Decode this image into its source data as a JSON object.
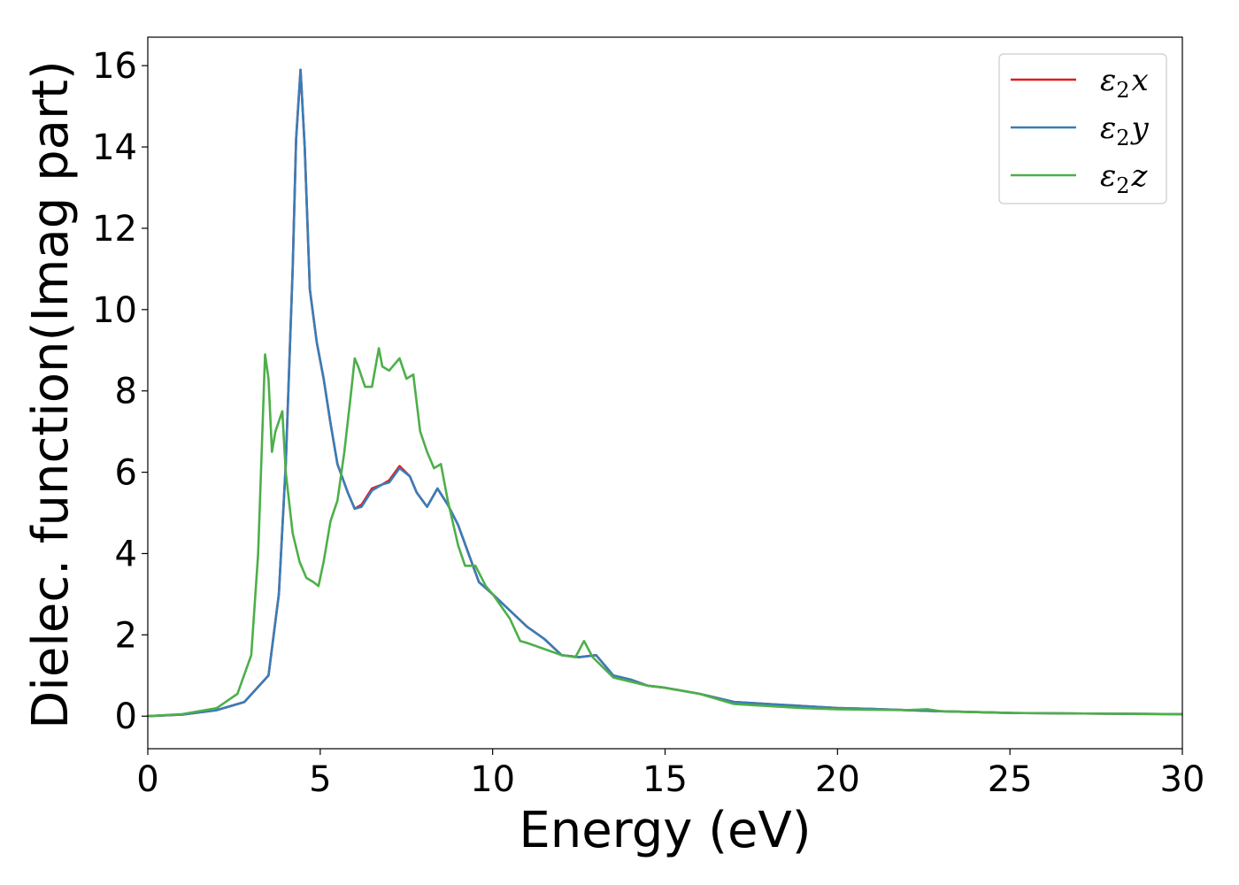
{
  "chart_data": {
    "type": "line",
    "title": "",
    "xlabel": "Energy (eV)",
    "ylabel": "Dielec. function(Imag part)",
    "xlim": [
      0,
      30
    ],
    "ylim": [
      -0.8,
      16.7
    ],
    "xticks": [
      0,
      5,
      10,
      15,
      20,
      25,
      30
    ],
    "yticks": [
      0,
      2,
      4,
      6,
      8,
      10,
      12,
      14,
      16
    ],
    "grid": false,
    "legend_position": "top-right",
    "series": [
      {
        "name": "ε₂x",
        "legend_base": "ε",
        "legend_sub": "2",
        "legend_var": "x",
        "color": "#e41a1c",
        "x": [
          0,
          1,
          2,
          2.8,
          3.5,
          3.8,
          4.0,
          4.2,
          4.3,
          4.43,
          4.55,
          4.7,
          4.9,
          5.1,
          5.3,
          5.5,
          5.8,
          6.0,
          6.2,
          6.5,
          6.8,
          7.0,
          7.3,
          7.6,
          7.8,
          8.1,
          8.4,
          8.7,
          9.0,
          9.3,
          9.6,
          10.0,
          10.5,
          11.0,
          11.5,
          12.0,
          12.5,
          13.0,
          13.5,
          14.0,
          14.5,
          15.0,
          16.0,
          17.0,
          18.0,
          19.0,
          20.0,
          21.0,
          22.0,
          23.0,
          25.0,
          28.0,
          30.0
        ],
        "y": [
          0,
          0.04,
          0.15,
          0.35,
          1.0,
          3.0,
          6.2,
          11.0,
          14.2,
          15.9,
          14.0,
          10.5,
          9.2,
          8.3,
          7.2,
          6.2,
          5.5,
          5.1,
          5.2,
          5.6,
          5.7,
          5.8,
          6.15,
          5.9,
          5.5,
          5.15,
          5.6,
          5.2,
          4.7,
          4.0,
          3.3,
          3.0,
          2.6,
          2.2,
          1.9,
          1.5,
          1.45,
          1.5,
          1.0,
          0.9,
          0.75,
          0.7,
          0.55,
          0.35,
          0.3,
          0.25,
          0.2,
          0.18,
          0.15,
          0.12,
          0.08,
          0.06,
          0.05
        ]
      },
      {
        "name": "ε₂y",
        "legend_base": "ε",
        "legend_sub": "2",
        "legend_var": "y",
        "color": "#377eb8",
        "x": [
          0,
          1,
          2,
          2.8,
          3.5,
          3.8,
          4.0,
          4.2,
          4.3,
          4.43,
          4.55,
          4.7,
          4.9,
          5.1,
          5.3,
          5.5,
          5.8,
          6.0,
          6.2,
          6.5,
          6.8,
          7.0,
          7.3,
          7.6,
          7.8,
          8.1,
          8.4,
          8.7,
          9.0,
          9.3,
          9.6,
          10.0,
          10.5,
          11.0,
          11.5,
          12.0,
          12.5,
          13.0,
          13.5,
          14.0,
          14.5,
          15.0,
          16.0,
          17.0,
          18.0,
          19.0,
          20.0,
          21.0,
          22.0,
          23.0,
          25.0,
          28.0,
          30.0
        ],
        "y": [
          0,
          0.04,
          0.15,
          0.35,
          1.0,
          3.0,
          6.2,
          11.0,
          14.2,
          15.9,
          14.0,
          10.5,
          9.2,
          8.3,
          7.2,
          6.2,
          5.5,
          5.1,
          5.15,
          5.55,
          5.7,
          5.75,
          6.1,
          5.9,
          5.5,
          5.15,
          5.6,
          5.2,
          4.7,
          4.0,
          3.3,
          3.0,
          2.6,
          2.2,
          1.9,
          1.5,
          1.45,
          1.5,
          1.0,
          0.9,
          0.75,
          0.7,
          0.55,
          0.35,
          0.3,
          0.25,
          0.2,
          0.18,
          0.15,
          0.12,
          0.08,
          0.06,
          0.05
        ]
      },
      {
        "name": "ε₂z",
        "legend_base": "ε",
        "legend_sub": "2",
        "legend_var": "z",
        "color": "#4daf4a",
        "x": [
          0,
          1,
          2,
          2.6,
          3.0,
          3.2,
          3.4,
          3.5,
          3.6,
          3.7,
          3.9,
          4.0,
          4.2,
          4.4,
          4.6,
          4.8,
          4.95,
          5.1,
          5.3,
          5.5,
          5.7,
          5.9,
          6.0,
          6.1,
          6.3,
          6.5,
          6.7,
          6.8,
          7.0,
          7.3,
          7.5,
          7.7,
          7.9,
          8.1,
          8.3,
          8.5,
          8.7,
          9.0,
          9.2,
          9.5,
          9.8,
          10.0,
          10.5,
          10.8,
          11.0,
          11.5,
          12.0,
          12.4,
          12.65,
          12.9,
          13.5,
          14.0,
          14.5,
          15.0,
          16.0,
          17.0,
          18.0,
          19.0,
          20.0,
          21.0,
          22.0,
          22.6,
          23.0,
          25.0,
          28.0,
          30.0
        ],
        "y": [
          0,
          0.05,
          0.2,
          0.55,
          1.5,
          4.0,
          8.9,
          8.3,
          6.5,
          7.0,
          7.5,
          6.0,
          4.5,
          3.8,
          3.4,
          3.3,
          3.2,
          3.8,
          4.8,
          5.3,
          6.5,
          8.0,
          8.8,
          8.6,
          8.1,
          8.1,
          9.05,
          8.6,
          8.5,
          8.8,
          8.3,
          8.4,
          7.0,
          6.5,
          6.1,
          6.2,
          5.3,
          4.2,
          3.7,
          3.7,
          3.2,
          3.0,
          2.4,
          1.85,
          1.8,
          1.65,
          1.5,
          1.45,
          1.85,
          1.45,
          0.95,
          0.85,
          0.75,
          0.7,
          0.55,
          0.3,
          0.25,
          0.2,
          0.17,
          0.16,
          0.15,
          0.17,
          0.12,
          0.08,
          0.06,
          0.05
        ]
      }
    ]
  }
}
